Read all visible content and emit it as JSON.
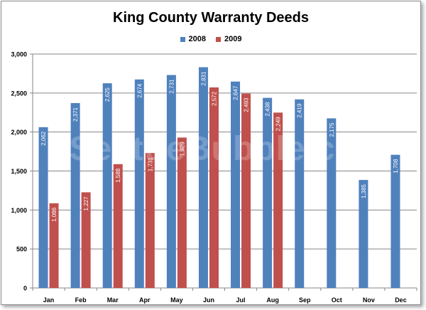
{
  "colors": {
    "series_2008": "#4f81bd",
    "series_2009": "#c0504d",
    "grid": "#868686",
    "axis": "#868686"
  },
  "watermark_text": "SeattleBubble.com",
  "chart_data": {
    "type": "bar",
    "title": "King County Warranty Deeds",
    "xlabel": "",
    "ylabel": "",
    "ylim": [
      0,
      3000
    ],
    "yticks": [
      0,
      500,
      1000,
      1500,
      2000,
      2500,
      3000
    ],
    "ytick_labels": [
      "0",
      "500",
      "1,000",
      "1,500",
      "2,000",
      "2,500",
      "3,000"
    ],
    "legend_position": "top-center",
    "grid": true,
    "categories": [
      "Jan",
      "Feb",
      "Mar",
      "Apr",
      "May",
      "Jun",
      "Jul",
      "Aug",
      "Sep",
      "Oct",
      "Nov",
      "Dec"
    ],
    "series": [
      {
        "name": "2008",
        "color": "#4f81bd",
        "values": [
          2062,
          2371,
          2625,
          2674,
          2731,
          2831,
          2647,
          2438,
          2419,
          2175,
          1385,
          1708
        ],
        "labels": [
          "2,062",
          "2,371",
          "2,625",
          "2,674",
          "2,731",
          "2,831",
          "2,647",
          "2,438",
          "2,419",
          "2,175",
          "1,385",
          "1,708"
        ]
      },
      {
        "name": "2009",
        "color": "#c0504d",
        "values": [
          1086,
          1227,
          1588,
          1731,
          1929,
          2572,
          2493,
          2249,
          null,
          null,
          null,
          null
        ],
        "labels": [
          "1,086",
          "1,227",
          "1,588",
          "1,731",
          "1,929",
          "2,572",
          "2,493",
          "2,249",
          "",
          "",
          "",
          ""
        ]
      }
    ]
  }
}
